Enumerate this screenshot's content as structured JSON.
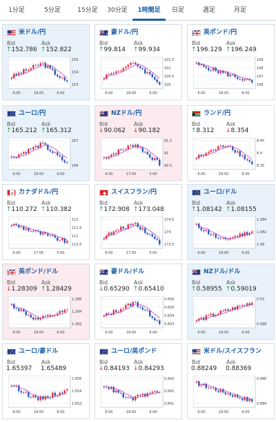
{
  "tabs": [
    {
      "label": "1分足",
      "active": false
    },
    {
      "label": "5分足",
      "active": false
    },
    {
      "label": "15分足",
      "active": false
    },
    {
      "label": "30分足",
      "active": false
    },
    {
      "label": "1時間足",
      "active": true
    },
    {
      "label": "日足",
      "active": false
    },
    {
      "label": "週足",
      "active": false
    },
    {
      "label": "月足",
      "active": false
    }
  ],
  "bid_label": "Bid",
  "ask_label": "Ask",
  "colors": {
    "up": "#e0303a",
    "down": "#2b55b8",
    "ma": "#c03bc6",
    "arrow_up": "#1a9a4a",
    "arrow_down": "#d43030"
  },
  "cards": [
    {
      "pair": "米ドル/円",
      "flag": "us",
      "bg": "blue",
      "bid": "152.786",
      "bid_dir": "up",
      "ask": "152.822",
      "ask_dir": "up",
      "yticks": [
        "155",
        "154",
        "153"
      ],
      "xticks": [
        "6:00",
        "18:00",
        "6:00"
      ],
      "trend": "peakdown"
    },
    {
      "pair": "豪ドル/円",
      "flag": "au",
      "bg": "white",
      "bid": "99.814",
      "bid_dir": "up",
      "ask": "99.934",
      "ask_dir": "up",
      "yticks": [
        "101.5",
        "101",
        "100.5",
        "100"
      ],
      "xticks": [
        "6:00",
        "18:00",
        "6:00"
      ],
      "trend": "peakdown"
    },
    {
      "pair": "英ポンド/円",
      "flag": "gb",
      "bg": "white",
      "bid": "196.129",
      "bid_dir": "up",
      "ask": "196.249",
      "ask_dir": "up",
      "yticks": [
        "199",
        "198",
        "197",
        "196"
      ],
      "xticks": [
        "6:00",
        "18:00",
        "6:00"
      ],
      "trend": "down"
    },
    {
      "pair": "ユーロ/円",
      "flag": "eu",
      "bg": "blue",
      "bid": "165.212",
      "bid_dir": "up",
      "ask": "165.312",
      "ask_dir": "up",
      "yticks": [
        "167",
        "166"
      ],
      "xticks": [
        "6:00",
        "18:00",
        "6:00"
      ],
      "trend": "peakdown"
    },
    {
      "pair": "NZドル/円",
      "flag": "nz",
      "bg": "pink",
      "bid": "90.062",
      "bid_dir": "down",
      "ask": "90.182",
      "ask_dir": "down",
      "yticks": [
        "91.5",
        "91",
        "90.5"
      ],
      "xticks": [
        "6:00",
        "17:00",
        "5:00"
      ],
      "trend": "peakdown"
    },
    {
      "pair": "ランド/円",
      "flag": "za",
      "bg": "white",
      "bid": "8.312",
      "bid_dir": "up",
      "ask": "8.354",
      "ask_dir": "down",
      "yticks": [
        "8.45",
        "8.4",
        "8.35"
      ],
      "xticks": [
        "6:00",
        "18:00",
        "6:00"
      ],
      "trend": "peakdown"
    },
    {
      "pair": "カナダドル/円",
      "flag": "ca",
      "bg": "white",
      "bid": "110.272",
      "bid_dir": "up",
      "ask": "110.382",
      "ask_dir": "up",
      "yticks": [
        "112",
        "111.5",
        "111",
        "110.5"
      ],
      "xticks": [
        "6:00",
        "17:00",
        "5:00"
      ],
      "trend": "down"
    },
    {
      "pair": "スイスフラン/円",
      "flag": "ch",
      "bg": "white",
      "bid": "172.908",
      "bid_dir": "up",
      "ask": "173.048",
      "ask_dir": "up",
      "yticks": [
        "174.5",
        "174",
        "173.5"
      ],
      "xticks": [
        "6:00",
        "17:00",
        "5:00"
      ],
      "trend": "peakdown"
    },
    {
      "pair": "ユーロ/ドル",
      "flag": "eu",
      "bg": "blue",
      "bid": "1.08142",
      "bid_dir": "up",
      "ask": "1.08155",
      "ask_dir": "up",
      "yticks": [
        "1.084",
        "1.082",
        "1.08"
      ],
      "xticks": [
        "6:00",
        "18:00",
        "6:00"
      ],
      "trend": "downup"
    },
    {
      "pair": "英ポンド/ドル",
      "flag": "gb",
      "bg": "pink",
      "bid": "1.28309",
      "bid_dir": "down",
      "ask": "1.28429",
      "ask_dir": "up",
      "yticks": [
        "1.286",
        "1.284",
        "1.282"
      ],
      "xticks": [
        "6:00",
        "18:00",
        "6:00"
      ],
      "trend": "downup"
    },
    {
      "pair": "豪ドル/ドル",
      "flag": "au",
      "bg": "white",
      "bid": "0.65290",
      "bid_dir": "down",
      "ask": "0.65410",
      "ask_dir": "up",
      "yticks": [
        "0.656",
        "0.655",
        "0.654",
        "0.653"
      ],
      "xticks": [
        "6:00",
        "18:00",
        "6:00"
      ],
      "trend": "peakdown"
    },
    {
      "pair": "NZドル/ドル",
      "flag": "nz",
      "bg": "blue",
      "bid": "0.58955",
      "bid_dir": "up",
      "ask": "0.59019",
      "ask_dir": "up",
      "yticks": [
        "0.59",
        "0.588"
      ],
      "xticks": [
        "6:00",
        "18:00",
        "6:00"
      ],
      "trend": "up"
    },
    {
      "pair": "ユーロ/豪ドル",
      "flag": "eu",
      "bg": "white",
      "bid": "1.65397",
      "bid_dir": "none",
      "ask": "1.65489",
      "ask_dir": "none",
      "yticks": [
        "1.656",
        "1.654",
        "1.652"
      ],
      "xticks": [
        "6:00",
        "18:00",
        "6:00"
      ],
      "trend": "downup"
    },
    {
      "pair": "ユーロ/英ポンド",
      "flag": "eu",
      "bg": "white",
      "bid": "0.84193",
      "bid_dir": "down",
      "ask": "0.84293",
      "ask_dir": "down",
      "yticks": [
        "0.843",
        "0.842",
        "0.841"
      ],
      "xticks": [
        "6:00",
        "18:00",
        "6:00"
      ],
      "trend": "downup"
    },
    {
      "pair": "米ドル/スイスフラン",
      "flag": "us",
      "bg": "white",
      "bid": "0.88249",
      "bid_dir": "none",
      "ask": "0.88369",
      "ask_dir": "none",
      "yticks": [
        "0.886",
        "0.884"
      ],
      "xticks": [
        "6:00",
        "18:00",
        "6:00"
      ],
      "trend": "down"
    }
  ]
}
